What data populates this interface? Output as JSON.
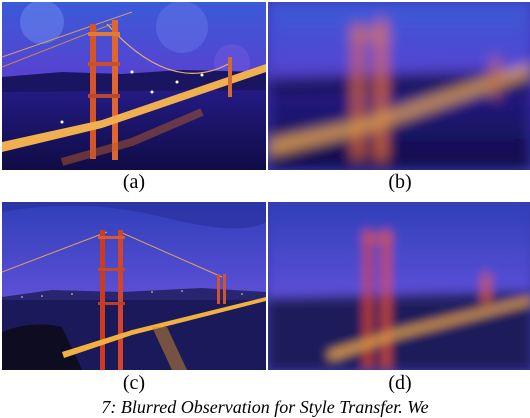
{
  "figure": {
    "panels": [
      {
        "label": "(a)",
        "style": "painted"
      },
      {
        "label": "(b)",
        "style": "blurred"
      },
      {
        "label": "(c)",
        "style": "photo"
      },
      {
        "label": "(d)",
        "style": "blurred"
      }
    ],
    "caption": "7: Blurred Observation for Style Transfer. We"
  }
}
